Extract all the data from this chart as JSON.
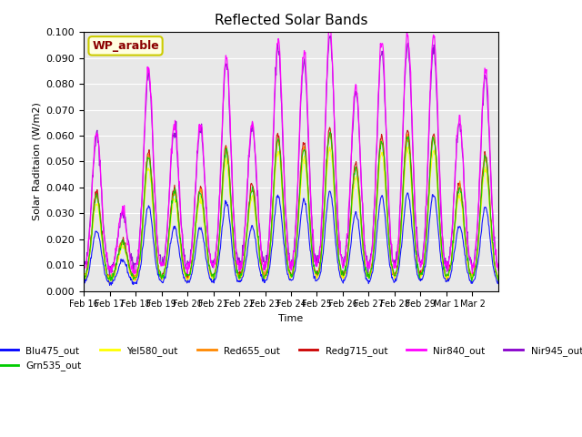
{
  "title": "Reflected Solar Bands",
  "xlabel": "Time",
  "ylabel": "Solar Raditaion (W/m2)",
  "annotation": "WP_arable",
  "ylim": [
    0,
    0.1
  ],
  "yticks": [
    0.0,
    0.01,
    0.02,
    0.03,
    0.04,
    0.05,
    0.06,
    0.07,
    0.08,
    0.09,
    0.1
  ],
  "xtick_labels": [
    "Feb 16",
    "Feb 17",
    "Feb 18",
    "Feb 19",
    "Feb 20",
    "Feb 21",
    "Feb 22",
    "Feb 23",
    "Feb 24",
    "Feb 25",
    "Feb 26",
    "Feb 27",
    "Feb 28",
    "Feb 29",
    "Mar 1",
    "Mar 2"
  ],
  "colors": {
    "Blu475_out": "#0000ff",
    "Grn535_out": "#00cc00",
    "Yel580_out": "#ffff00",
    "Red655_out": "#ff8800",
    "Redg715_out": "#cc0000",
    "Nir840_out": "#ff00ff",
    "Nir945_out": "#8800cc"
  },
  "background_color": "#e8e8e8",
  "n_days": 16,
  "points_per_day": 48,
  "day_peaks": [
    0.055,
    0.025,
    0.08,
    0.058,
    0.058,
    0.084,
    0.059,
    0.091,
    0.086,
    0.095,
    0.073,
    0.09,
    0.093,
    0.092,
    0.06,
    0.079
  ],
  "blue_scale": 0.38,
  "green_scale": 0.6,
  "yellow_scale": 0.55,
  "orange_scale": 0.6,
  "red_scale": 0.62,
  "nir840_scale": 1.0,
  "nir945_scale": 0.95
}
